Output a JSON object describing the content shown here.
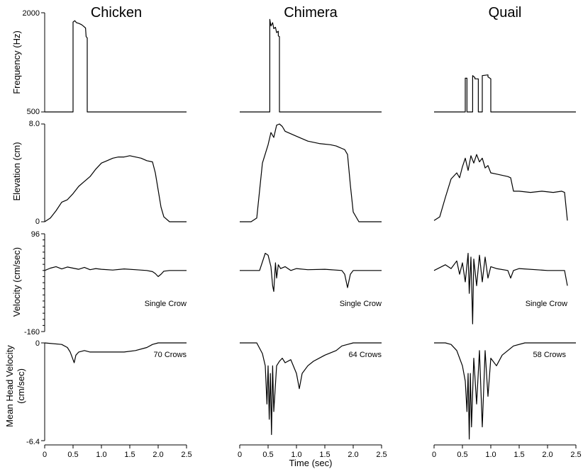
{
  "figure": {
    "columns": [
      "Chicken",
      "Chimera",
      "Quail"
    ],
    "xlabel": "Time (sec)"
  },
  "chart_data": {
    "type": "line",
    "xlim": [
      0,
      2.5
    ],
    "xticks": [
      "0",
      "0.5",
      "1.0",
      "1.5",
      "2.0",
      "2.5"
    ],
    "rows": [
      {
        "key": "frequency",
        "ylabel": [
          "Frequency (Hz)"
        ],
        "ylim": [
          500,
          2000
        ],
        "ytick_labels": [
          "2000",
          "500"
        ],
        "ytick_values": [
          2000,
          500
        ],
        "minor_ticks": 0
      },
      {
        "key": "elevation",
        "ylabel": [
          "Elevation (cm)"
        ],
        "ylim": [
          0,
          8.0
        ],
        "ytick_labels": [
          "8.0",
          "0"
        ],
        "ytick_values": [
          8.0,
          0
        ],
        "minor_ticks": 0
      },
      {
        "key": "velocity",
        "ylabel": [
          "Velocity (cm/sec)"
        ],
        "ylim": [
          -160,
          96
        ],
        "ytick_labels": [
          "96",
          "-160"
        ],
        "ytick_values": [
          96,
          -160
        ],
        "minor_ticks": 16
      },
      {
        "key": "mean_head_velocity",
        "ylabel": [
          "Mean Head Velocity",
          "(cm/sec)"
        ],
        "ylim": [
          -6.4,
          0
        ],
        "ytick_labels": [
          "0",
          "-6.4"
        ],
        "ytick_values": [
          0,
          -6.4
        ],
        "minor_ticks": 0
      }
    ],
    "annotations": [
      [
        "",
        "",
        "Single Crow",
        "70 Crows"
      ],
      [
        "",
        "",
        "Single Crow",
        "64 Crows"
      ],
      [
        "",
        "",
        "Single Crow",
        "58 Crows"
      ]
    ],
    "series": [
      {
        "name": "Chicken",
        "frequency": {
          "x": [
            0,
            0.5,
            0.5,
            0.53,
            0.56,
            0.6,
            0.65,
            0.68,
            0.72,
            0.73,
            0.75,
            0.75,
            2.5
          ],
          "y": [
            500,
            500,
            1860,
            1880,
            1850,
            1840,
            1820,
            1800,
            1770,
            1640,
            1620,
            500,
            500
          ]
        },
        "elevation": {
          "x": [
            0,
            0.1,
            0.2,
            0.3,
            0.4,
            0.5,
            0.6,
            0.7,
            0.8,
            0.9,
            1.0,
            1.1,
            1.2,
            1.3,
            1.4,
            1.5,
            1.6,
            1.7,
            1.8,
            1.9,
            1.95,
            2.0,
            2.05,
            2.1,
            2.2,
            2.5
          ],
          "y": [
            0,
            0.3,
            0.9,
            1.6,
            1.8,
            2.3,
            2.9,
            3.3,
            3.7,
            4.3,
            4.8,
            5.0,
            5.2,
            5.3,
            5.3,
            5.4,
            5.3,
            5.2,
            5.0,
            4.9,
            4.0,
            2.6,
            1.2,
            0.4,
            0,
            0
          ]
        },
        "velocity": {
          "x": [
            0,
            0.1,
            0.2,
            0.3,
            0.4,
            0.5,
            0.6,
            0.7,
            0.8,
            0.9,
            1.0,
            1.2,
            1.4,
            1.6,
            1.8,
            1.9,
            1.95,
            2.0,
            2.05,
            2.1,
            2.2,
            2.5
          ],
          "y": [
            0,
            6,
            10,
            4,
            9,
            6,
            3,
            8,
            2,
            5,
            3,
            1,
            4,
            2,
            0,
            -3,
            -8,
            -16,
            -10,
            -2,
            0,
            0
          ]
        },
        "mean_head_velocity": {
          "x": [
            0,
            0.3,
            0.4,
            0.45,
            0.5,
            0.52,
            0.55,
            0.6,
            0.7,
            0.8,
            1.0,
            1.2,
            1.4,
            1.6,
            1.8,
            1.9,
            2.0,
            2.1,
            2.5
          ],
          "y": [
            0,
            -0.1,
            -0.3,
            -0.6,
            -1.1,
            -1.3,
            -0.8,
            -0.6,
            -0.5,
            -0.6,
            -0.6,
            -0.6,
            -0.6,
            -0.5,
            -0.3,
            -0.1,
            0,
            0,
            0
          ]
        }
      },
      {
        "name": "Chimera",
        "frequency": {
          "x": [
            0,
            0.53,
            0.53,
            0.55,
            0.58,
            0.6,
            0.63,
            0.65,
            0.68,
            0.68,
            0.7,
            0.7,
            2.5
          ],
          "y": [
            500,
            500,
            1900,
            1800,
            1850,
            1760,
            1780,
            1700,
            1720,
            1650,
            1640,
            500,
            500
          ]
        },
        "elevation": {
          "x": [
            0,
            0.1,
            0.2,
            0.3,
            0.4,
            0.5,
            0.55,
            0.6,
            0.65,
            0.7,
            0.75,
            0.8,
            1.0,
            1.2,
            1.4,
            1.6,
            1.7,
            1.75,
            1.8,
            1.85,
            1.9,
            1.95,
            2.0,
            2.1,
            2.5
          ],
          "y": [
            0,
            0,
            0,
            0.3,
            4.8,
            6.3,
            7.3,
            6.9,
            7.9,
            8.0,
            7.8,
            7.4,
            7.0,
            6.6,
            6.4,
            6.3,
            6.2,
            6.1,
            6.0,
            5.9,
            5.5,
            3.0,
            0.8,
            0,
            0
          ]
        },
        "velocity": {
          "x": [
            0,
            0.35,
            0.45,
            0.5,
            0.55,
            0.58,
            0.6,
            0.63,
            0.65,
            0.68,
            0.72,
            0.8,
            0.9,
            1.0,
            1.2,
            1.5,
            1.8,
            1.85,
            1.9,
            1.95,
            2.0,
            2.5
          ],
          "y": [
            0,
            0,
            45,
            40,
            10,
            -40,
            -55,
            20,
            -20,
            15,
            5,
            10,
            0,
            5,
            2,
            3,
            0,
            -10,
            -45,
            -10,
            0,
            0
          ]
        },
        "mean_head_velocity": {
          "x": [
            0,
            0.3,
            0.4,
            0.45,
            0.48,
            0.5,
            0.52,
            0.54,
            0.56,
            0.58,
            0.6,
            0.65,
            0.7,
            0.75,
            0.8,
            0.9,
            1.0,
            1.05,
            1.1,
            1.2,
            1.3,
            1.5,
            1.7,
            1.8,
            1.9,
            2.0,
            2.5
          ],
          "y": [
            0,
            0,
            -0.7,
            -1.5,
            -4.0,
            -1.5,
            -5.0,
            -2.0,
            -6.0,
            -1.5,
            -4.5,
            -1.5,
            -1.2,
            -1.0,
            -1.3,
            -1.1,
            -2.0,
            -3.0,
            -2.0,
            -1.5,
            -1.2,
            -0.8,
            -0.5,
            -0.2,
            -0.1,
            0,
            0
          ]
        }
      },
      {
        "name": "Quail",
        "frequency": {
          "x": [
            0,
            0.55,
            0.55,
            0.58,
            0.58,
            0.68,
            0.68,
            0.72,
            0.72,
            0.78,
            0.78,
            0.85,
            0.85,
            0.95,
            0.95,
            1.0,
            1.0,
            2.5
          ],
          "y": [
            500,
            500,
            1010,
            1010,
            500,
            500,
            1050,
            1020,
            1000,
            1000,
            500,
            500,
            1050,
            1060,
            1030,
            1000,
            500,
            500
          ]
        },
        "elevation": {
          "x": [
            0,
            0.1,
            0.2,
            0.3,
            0.4,
            0.45,
            0.5,
            0.55,
            0.6,
            0.65,
            0.7,
            0.75,
            0.8,
            0.85,
            0.9,
            0.95,
            1.0,
            1.1,
            1.2,
            1.3,
            1.35,
            1.4,
            1.5,
            1.7,
            1.9,
            2.1,
            2.25,
            2.3,
            2.35
          ],
          "y": [
            0.1,
            0.4,
            2.0,
            3.5,
            4.0,
            3.6,
            4.5,
            5.2,
            4.2,
            5.4,
            4.8,
            5.5,
            4.9,
            5.2,
            4.4,
            4.6,
            4.0,
            3.9,
            3.8,
            3.7,
            3.6,
            2.5,
            2.5,
            2.4,
            2.5,
            2.4,
            2.5,
            2.4,
            0.1
          ]
        },
        "velocity": {
          "x": [
            0,
            0.2,
            0.3,
            0.4,
            0.45,
            0.5,
            0.55,
            0.6,
            0.62,
            0.65,
            0.68,
            0.7,
            0.75,
            0.8,
            0.85,
            0.9,
            0.95,
            1.0,
            1.1,
            1.3,
            1.35,
            1.4,
            1.5,
            2.0,
            2.3,
            2.35
          ],
          "y": [
            0,
            15,
            5,
            25,
            -10,
            20,
            -30,
            45,
            -60,
            35,
            -140,
            30,
            -40,
            40,
            -30,
            35,
            -20,
            10,
            5,
            0,
            -20,
            0,
            5,
            0,
            0,
            -40
          ]
        },
        "mean_head_velocity": {
          "x": [
            0,
            0.2,
            0.3,
            0.4,
            0.5,
            0.55,
            0.58,
            0.6,
            0.62,
            0.64,
            0.66,
            0.7,
            0.75,
            0.8,
            0.85,
            0.9,
            0.95,
            1.0,
            1.1,
            1.2,
            1.4,
            1.6,
            2.5
          ],
          "y": [
            0,
            0,
            -0.1,
            -0.5,
            -1.5,
            -2.5,
            -4.5,
            -2.0,
            -6.3,
            -2.0,
            -5.5,
            -1.0,
            -4.0,
            -0.5,
            -5.5,
            -0.5,
            -3.5,
            -1.0,
            -1.5,
            -0.8,
            -0.2,
            0,
            0
          ]
        }
      }
    ]
  }
}
